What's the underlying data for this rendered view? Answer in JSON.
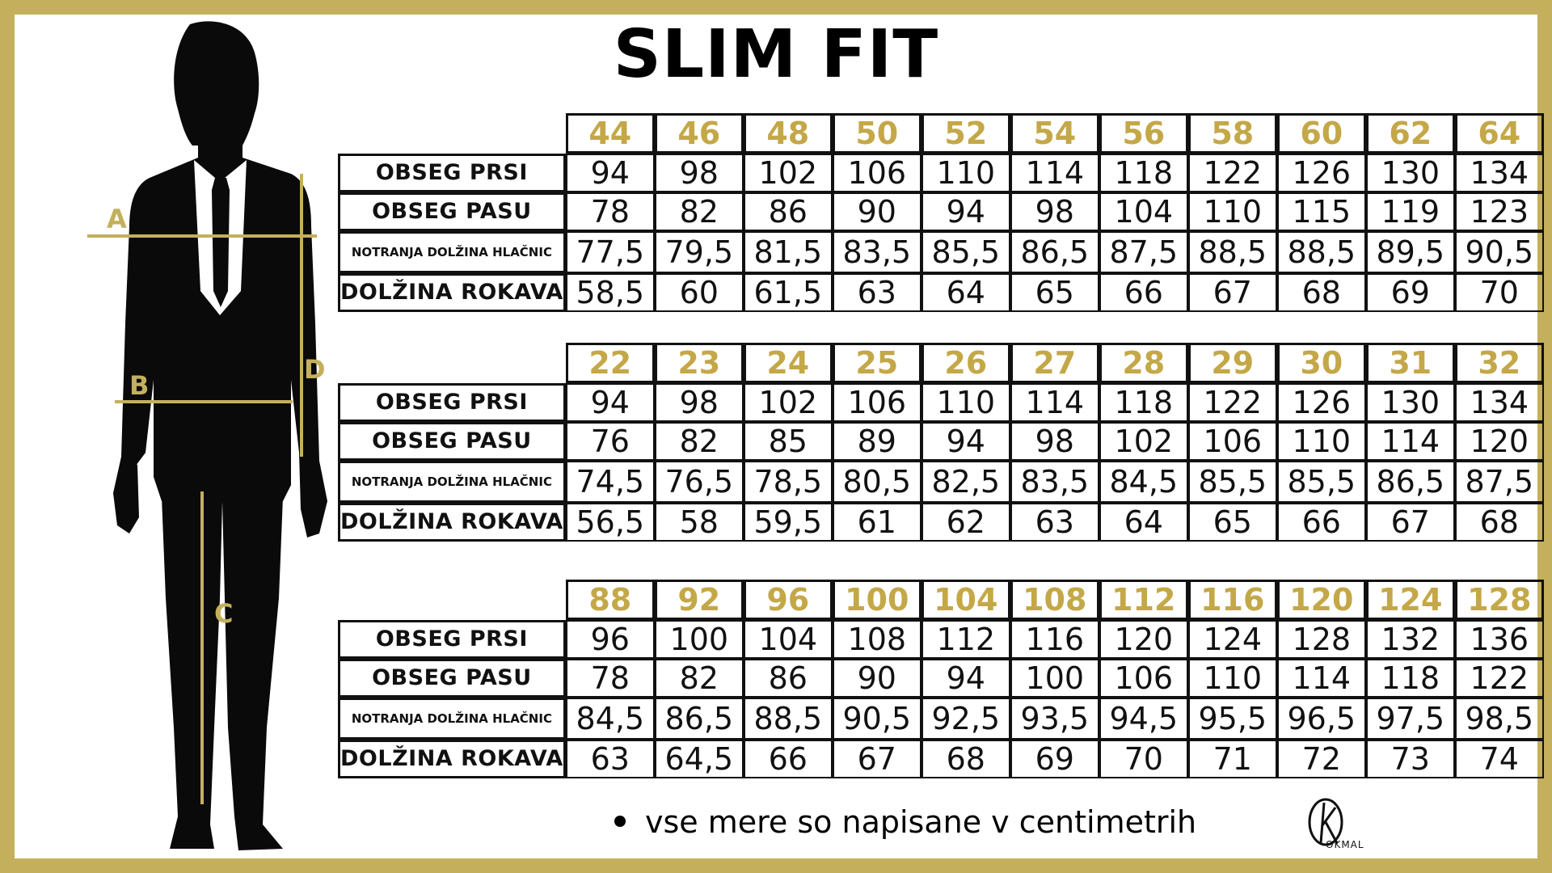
{
  "title": "SLIM FIT",
  "figure": {
    "labels": [
      "A",
      "B",
      "C",
      "D"
    ],
    "line_color": "#c4b05c"
  },
  "row_labels": [
    "OBSEG PRSI",
    "OBSEG PASU",
    "NOTRANJA DOLŽINA HLAČNIC",
    "DOLŽINA ROKAVA"
  ],
  "tables": [
    {
      "sizes": [
        "44",
        "46",
        "48",
        "50",
        "52",
        "54",
        "56",
        "58",
        "60",
        "62",
        "64"
      ],
      "rows": [
        [
          "94",
          "98",
          "102",
          "106",
          "110",
          "114",
          "118",
          "122",
          "126",
          "130",
          "134"
        ],
        [
          "78",
          "82",
          "86",
          "90",
          "94",
          "98",
          "104",
          "110",
          "115",
          "119",
          "123"
        ],
        [
          "77,5",
          "79,5",
          "81,5",
          "83,5",
          "85,5",
          "86,5",
          "87,5",
          "88,5",
          "88,5",
          "89,5",
          "90,5"
        ],
        [
          "58,5",
          "60",
          "61,5",
          "63",
          "64",
          "65",
          "66",
          "67",
          "68",
          "69",
          "70"
        ]
      ]
    },
    {
      "sizes": [
        "22",
        "23",
        "24",
        "25",
        "26",
        "27",
        "28",
        "29",
        "30",
        "31",
        "32"
      ],
      "rows": [
        [
          "94",
          "98",
          "102",
          "106",
          "110",
          "114",
          "118",
          "122",
          "126",
          "130",
          "134"
        ],
        [
          "76",
          "82",
          "85",
          "89",
          "94",
          "98",
          "102",
          "106",
          "110",
          "114",
          "120"
        ],
        [
          "74,5",
          "76,5",
          "78,5",
          "80,5",
          "82,5",
          "83,5",
          "84,5",
          "85,5",
          "85,5",
          "86,5",
          "87,5"
        ],
        [
          "56,5",
          "58",
          "59,5",
          "61",
          "62",
          "63",
          "64",
          "65",
          "66",
          "67",
          "68"
        ]
      ]
    },
    {
      "sizes": [
        "88",
        "92",
        "96",
        "100",
        "104",
        "108",
        "112",
        "116",
        "120",
        "124",
        "128"
      ],
      "rows": [
        [
          "96",
          "100",
          "104",
          "108",
          "112",
          "116",
          "120",
          "124",
          "128",
          "132",
          "136"
        ],
        [
          "78",
          "82",
          "86",
          "90",
          "94",
          "100",
          "106",
          "110",
          "114",
          "118",
          "122"
        ],
        [
          "84,5",
          "86,5",
          "88,5",
          "90,5",
          "92,5",
          "93,5",
          "94,5",
          "95,5",
          "96,5",
          "97,5",
          "98,5"
        ],
        [
          "63",
          "64,5",
          "66",
          "67",
          "68",
          "69",
          "70",
          "71",
          "72",
          "73",
          "74"
        ]
      ]
    }
  ],
  "footer_note": "vse mere so napisane v centimetrih",
  "logo": {
    "text": "OKMAL",
    "glyph": "k"
  },
  "colors": {
    "accent": "#c4b05c",
    "size_text": "#c4a848"
  }
}
